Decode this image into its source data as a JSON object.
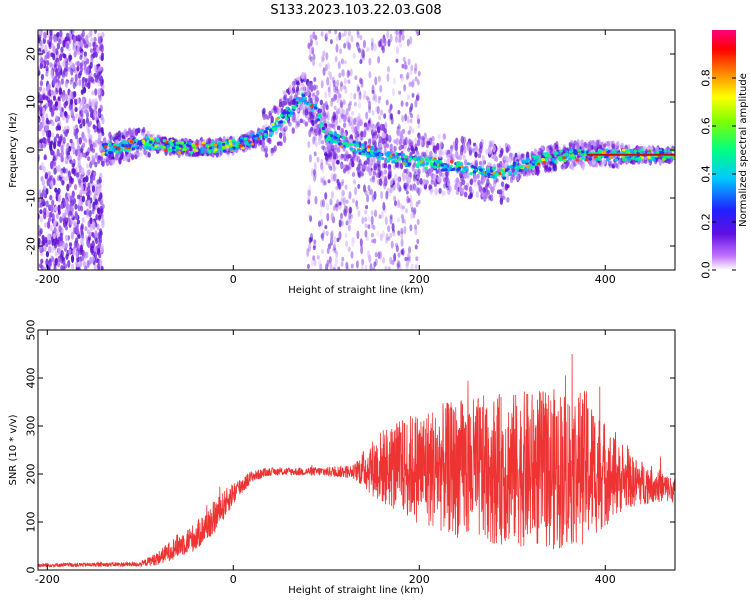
{
  "title": "S133.2023.103.22.03.G08",
  "chart_data": [
    {
      "type": "heatmap",
      "xlabel": "Height of straight line (km)",
      "ylabel": "Frequency (Hz)",
      "xlim": [
        -210,
        475
      ],
      "ylim": [
        -25,
        25
      ],
      "xticks": [
        -200,
        0,
        200,
        400
      ],
      "yticks": [
        -20,
        -10,
        0,
        10,
        20
      ],
      "colorbar": {
        "label": "Normalized spectral amplitude",
        "range": [
          0,
          1
        ],
        "ticks": [
          0.0,
          0.2,
          0.4,
          0.6,
          0.8
        ],
        "colors": [
          "#ffffff",
          "#6a0dad",
          "#3c1cff",
          "#00c8ff",
          "#00ff7f",
          "#aaff00",
          "#ffff00",
          "#ff8800",
          "#ff0000",
          "#ff0080"
        ]
      },
      "ridge": {
        "description_points_x": [
          -140,
          -110,
          -90,
          -60,
          -20,
          0,
          20,
          40,
          60,
          75,
          90,
          100,
          140,
          180,
          220,
          260,
          290,
          300,
          330,
          360,
          400,
          440,
          475
        ],
        "description_points_y": [
          0,
          1,
          1.5,
          0.5,
          0.5,
          1,
          2,
          4,
          8,
          11,
          8,
          3,
          0,
          -2,
          -3,
          -4,
          -5,
          -4,
          -2,
          -1,
          -1,
          -1,
          -1
        ]
      }
    },
    {
      "type": "line",
      "xlabel": "Height of straight line (km)",
      "ylabel": "SNR (10 * v/v)",
      "xlim": [
        -210,
        475
      ],
      "ylim": [
        0,
        500
      ],
      "xticks": [
        -200,
        0,
        200,
        400
      ],
      "yticks": [
        0,
        100,
        200,
        300,
        400,
        500
      ],
      "series": [
        {
          "color": "#ee3333",
          "envelope_x": [
            -210,
            -100,
            -80,
            -60,
            -40,
            -20,
            0,
            20,
            40,
            60,
            100,
            130,
            140,
            160,
            200,
            250,
            300,
            350,
            380,
            400,
            420,
            450,
            475
          ],
          "mean_y": [
            10,
            12,
            25,
            50,
            70,
            110,
            160,
            195,
            205,
            205,
            205,
            205,
            210,
            215,
            215,
            210,
            210,
            210,
            215,
            200,
            185,
            180,
            165
          ],
          "spread_y": [
            4,
            5,
            15,
            25,
            30,
            35,
            25,
            12,
            8,
            8,
            10,
            15,
            40,
            80,
            120,
            150,
            160,
            170,
            160,
            110,
            60,
            40,
            25
          ]
        }
      ]
    }
  ]
}
